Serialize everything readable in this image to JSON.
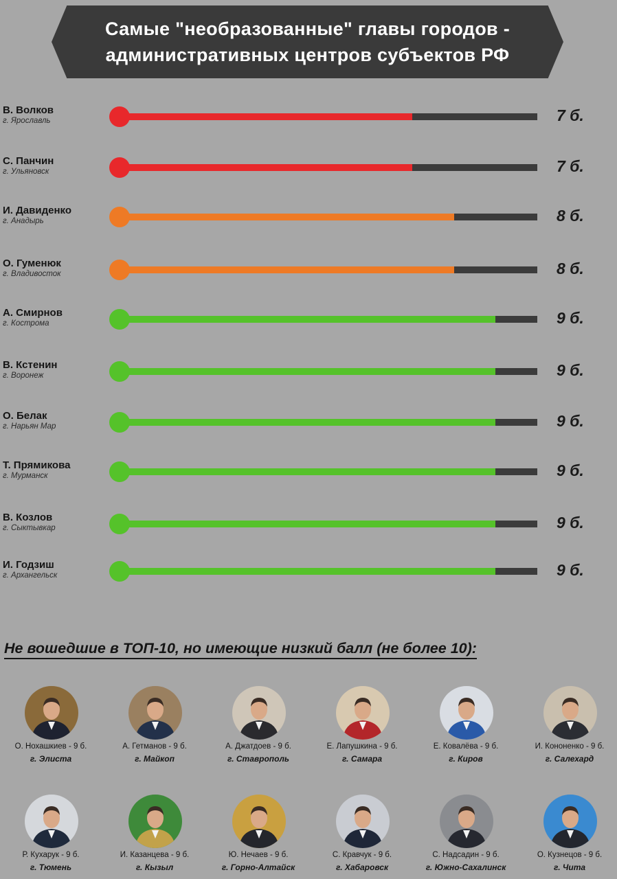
{
  "title": {
    "line1": "Самые \"необразованные\" главы городов -",
    "line2": "административных центров субъектов РФ"
  },
  "chart_data": {
    "type": "bar",
    "max_value": 10,
    "unit": "б.",
    "colors": {
      "7": "#e8282b",
      "8": "#ee7a25",
      "9": "#55c22a",
      "track": "#3b3b3b"
    },
    "items": [
      {
        "name": "В. Волков",
        "city": "г. Ярославль",
        "value": 7,
        "label": "7 б."
      },
      {
        "name": "С. Панчин",
        "city": "г. Ульяновск",
        "value": 7,
        "label": "7 б."
      },
      {
        "name": "И. Давиденко",
        "city": "г. Анадырь",
        "value": 8,
        "label": "8 б."
      },
      {
        "name": "О. Гуменюк",
        "city": "г. Владивосток",
        "value": 8,
        "label": "8 б."
      },
      {
        "name": "А. Смирнов",
        "city": "г. Кострома",
        "value": 9,
        "label": "9 б."
      },
      {
        "name": "В. Кстенин",
        "city": "г. Воронеж",
        "value": 9,
        "label": "9 б."
      },
      {
        "name": "О. Белак",
        "city": "г. Нарьян Мар",
        "value": 9,
        "label": "9 б."
      },
      {
        "name": "Т. Прямикова",
        "city": "г. Мурманск",
        "value": 9,
        "label": "9 б."
      },
      {
        "name": "В. Козлов",
        "city": "г. Сыктывкар",
        "value": 9,
        "label": "9 б."
      },
      {
        "name": "И. Годзиш",
        "city": "г. Архангельск",
        "value": 9,
        "label": "9 б."
      }
    ]
  },
  "others": {
    "heading": "Не вошедшие в ТОП-10, но имеющие низкий балл (не более 10):",
    "people": [
      {
        "name": "О. Нохашкиев - 9 б.",
        "city": "г. Элиста",
        "bg": "#8a6a3a",
        "suit": "#1e2230"
      },
      {
        "name": "А. Гетманов - 9 б.",
        "city": "г. Майкоп",
        "bg": "#9a8060",
        "suit": "#23314a"
      },
      {
        "name": "А. Джатдоев - 9 б.",
        "city": "г. Ставрополь",
        "bg": "#cfc6b8",
        "suit": "#2a2a2e"
      },
      {
        "name": "Е. Лапушкина - 9 б.",
        "city": "г. Самара",
        "bg": "#d8c9b0",
        "suit": "#b3262a"
      },
      {
        "name": "Е. Ковалёва - 9 б.",
        "city": "г. Киров",
        "bg": "#d9dde3",
        "suit": "#2a5aa8"
      },
      {
        "name": "И. Кононенко - 9 б.",
        "city": "г. Салехард",
        "bg": "#c9bfae",
        "suit": "#2b2d33"
      },
      {
        "name": "Р. Кухарук - 9 б.",
        "city": "г. Тюмень",
        "bg": "#d5d8dc",
        "suit": "#1f2a3c"
      },
      {
        "name": "И. Казанцева - 9 б.",
        "city": "г. Кызыл",
        "bg": "#3e8a3a",
        "suit": "#c2a24a"
      },
      {
        "name": "Ю. Нечаев - 9 б.",
        "city": "г. Горно-Алтайск",
        "bg": "#c9a040",
        "suit": "#24262c"
      },
      {
        "name": "С. Кравчук - 9 б.",
        "city": "г. Хабаровск",
        "bg": "#c9ccd2",
        "suit": "#1f2738"
      },
      {
        "name": "С. Надсадин - 9 б.",
        "city": "г. Южно-Сахалинск",
        "bg": "#8a8c90",
        "suit": "#262830"
      },
      {
        "name": "О. Кузнецов - 9 б.",
        "city": "г. Чита",
        "bg": "#3a8ad0",
        "suit": "#23262e"
      }
    ]
  }
}
